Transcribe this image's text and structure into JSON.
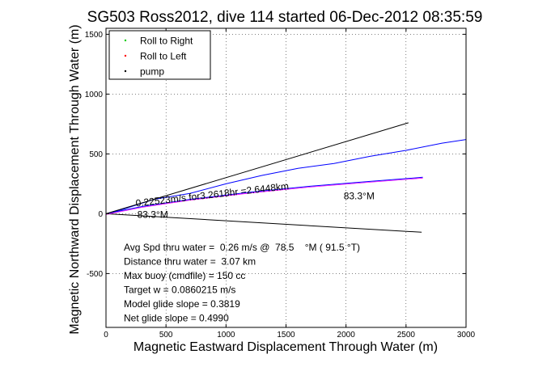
{
  "chart_data": {
    "type": "line",
    "title": "SG503 Ross2012, dive 114 started 06-Dec-2012 08:35:59",
    "xlabel": "Magnetic Eastward Displacement Through Water (m)",
    "ylabel": "Magnetic Northward Displacement Through Water (m)",
    "xlim": [
      0,
      3000
    ],
    "ylim": [
      -950,
      1550
    ],
    "xticks": [
      0,
      500,
      1000,
      1500,
      2000,
      2500,
      3000
    ],
    "yticks": [
      -500,
      0,
      500,
      1000,
      1500
    ],
    "grid": true,
    "legend": {
      "placement": "top-left",
      "entries": [
        {
          "label": "Roll to Right",
          "color": "#00cc00",
          "marker": "point"
        },
        {
          "label": "Roll to Left",
          "color": "#ff0000",
          "marker": "point"
        },
        {
          "label": "pump",
          "color": "#000000",
          "marker": "point"
        }
      ]
    },
    "series": [
      {
        "color": "#0000ff",
        "x": [
          0,
          150,
          400,
          700,
          1000,
          1300,
          1600,
          1900,
          2200,
          2500,
          2800,
          3000
        ],
        "y": [
          0,
          40,
          120,
          170,
          250,
          320,
          380,
          420,
          480,
          530,
          590,
          620
        ]
      },
      {
        "color": "#0000ff",
        "x": [
          0,
          300,
          700,
          1200,
          1700,
          2200,
          2640
        ],
        "y": [
          0,
          60,
          120,
          180,
          230,
          270,
          305
        ]
      },
      {
        "color": "#000000",
        "x": [
          0,
          2520
        ],
        "y": [
          0,
          760
        ]
      },
      {
        "color": "#000000",
        "x": [
          0,
          2630
        ],
        "y": [
          0,
          -155
        ]
      }
    ],
    "annotations": [
      {
        "text": "0.22523m/s for3.2618hr =2.6448km",
        "x": 250,
        "y": 60,
        "rotate": true
      },
      {
        "text": "83.3°M",
        "x": 260,
        "y": -35
      },
      {
        "text": "83.3°M",
        "x": 1980,
        "y": 120
      }
    ]
  },
  "summary_lines": [
    "Avg Spd thru water =  0.26 m/s @  78.5    °M ( 91.5 °T)",
    "Distance thru water =  3.07 km",
    "Max buoy (cmdfile) = 150 cc",
    "Target w = 0.0860215 m/s",
    "Model glide slope = 0.3819",
    "Net glide slope = 0.4990"
  ]
}
